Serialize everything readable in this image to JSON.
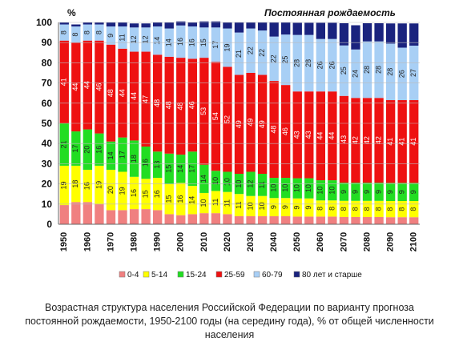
{
  "chart_data": {
    "type": "bar",
    "stacked": true,
    "percent_stacked": true,
    "title": "Постоянная рождаемость",
    "ylabel": "%",
    "ylim": [
      0,
      100
    ],
    "yticks": [
      "0",
      "10",
      "20",
      "30",
      "40",
      "50",
      "60",
      "70",
      "80",
      "90",
      "100"
    ],
    "x_tick_labels": [
      "1950",
      "1960",
      "1970",
      "1980",
      "1990",
      "2000",
      "2010",
      "2020",
      "2030",
      "2040",
      "2050",
      "2060",
      "2070",
      "2080",
      "2090",
      "2100"
    ],
    "categories": [
      1950,
      1955,
      1960,
      1965,
      1970,
      1975,
      1980,
      1985,
      1990,
      1995,
      2000,
      2005,
      2010,
      2015,
      2020,
      2025,
      2030,
      2035,
      2040,
      2045,
      2050,
      2055,
      2060,
      2065,
      2070,
      2075,
      2080,
      2085,
      2090,
      2095,
      2100
    ],
    "legend_position": "bottom",
    "series": [
      {
        "name": "0-4",
        "color": "#f08080",
        "values": [
          9.5,
          11,
          11,
          10,
          7,
          7,
          7.5,
          7.5,
          7,
          5,
          4.5,
          5,
          5.5,
          5.5,
          5,
          4,
          4,
          4,
          4,
          4,
          3.8,
          3.8,
          3.8,
          3.8,
          3.6,
          3.6,
          3.6,
          3.6,
          3.5,
          3.5,
          3.5
        ],
        "labels": [
          "",
          "",
          "",
          "",
          "",
          "",
          "",
          "",
          "",
          "",
          "",
          "",
          "",
          "",
          "",
          "",
          "",
          "",
          "",
          "",
          "",
          "",
          "",
          "",
          "",
          "",
          "",
          "",
          "",
          "",
          ""
        ]
      },
      {
        "name": "5-14",
        "color": "#ffff00",
        "values": [
          19.5,
          18,
          16,
          19,
          20,
          19,
          16,
          15,
          16,
          15,
          16,
          14,
          10,
          11,
          11,
          11,
          10,
          10,
          9,
          9,
          9,
          9,
          8,
          8,
          8,
          8,
          8,
          8,
          8,
          8,
          8
        ],
        "labels": [
          "19",
          "18",
          "16",
          "19",
          "20",
          "19",
          "16",
          "15",
          "16",
          "15",
          "16",
          "14",
          "10",
          "11",
          "11",
          "11",
          "10",
          "10",
          "9",
          "9",
          "9",
          "9",
          "8",
          "8",
          "8",
          "8",
          "8",
          "8",
          "8",
          "8",
          "8"
        ]
      },
      {
        "name": "15-24",
        "color": "#22dd22",
        "values": [
          21,
          17,
          20,
          16,
          14,
          17,
          18,
          16,
          13,
          15,
          14,
          17,
          14,
          10,
          10,
          10,
          12,
          11,
          10,
          10,
          10,
          10,
          10,
          10,
          9,
          9,
          9,
          9,
          9,
          9,
          9
        ],
        "labels": [
          "21",
          "17",
          "20",
          "16",
          "14",
          "17",
          "18",
          "16",
          "13",
          "15",
          "14",
          "17",
          "14",
          "10",
          "10",
          "10",
          "12",
          "11",
          "10",
          "10",
          "10",
          "10",
          "10",
          "10",
          "9",
          "9",
          "9",
          "9",
          "9",
          "9",
          "9"
        ]
      },
      {
        "name": "25-59",
        "color": "#ee1111",
        "values": [
          41,
          44,
          44,
          46,
          48,
          44,
          44,
          47,
          48,
          48,
          48,
          46,
          53,
          54,
          52,
          49,
          49,
          49,
          48,
          46,
          43,
          43,
          44,
          44,
          43,
          42,
          42,
          42,
          41,
          41,
          41
        ],
        "labels": [
          "41",
          "44",
          "44",
          "46",
          "48",
          "44",
          "44",
          "47",
          "48",
          "48",
          "48",
          "46",
          "53",
          "54",
          "52",
          "49",
          "49",
          "49",
          "48",
          "46",
          "43",
          "43",
          "44",
          "44",
          "43",
          "42",
          "42",
          "42",
          "41",
          "41",
          "41"
        ]
      },
      {
        "name": "60-79",
        "color": "#a8cff5",
        "values": [
          8,
          8,
          8,
          8,
          9,
          11,
          12,
          12,
          14,
          14,
          16,
          16,
          15,
          17,
          19,
          21,
          22,
          22,
          22,
          25,
          28,
          28,
          26,
          26,
          25,
          24,
          28,
          28,
          28,
          26,
          27
        ],
        "labels": [
          "8",
          "8",
          "8",
          "8",
          "9",
          "11",
          "12",
          "12",
          "14",
          "14",
          "16",
          "16",
          "15",
          "17",
          "19",
          "21",
          "22",
          "22",
          "22",
          "25",
          "28",
          "28",
          "26",
          "26",
          "25",
          "24",
          "28",
          "28",
          "28",
          "26",
          "27"
        ]
      },
      {
        "name": "80 лет и старше",
        "color": "#1a237e",
        "values": [
          1,
          1,
          1,
          1,
          2,
          2,
          2,
          2,
          2,
          3,
          2,
          2,
          3,
          3,
          3,
          5,
          3,
          4,
          7,
          6,
          6,
          6,
          8,
          8,
          11,
          12,
          9,
          9,
          10,
          12,
          11
        ],
        "labels": [
          "",
          "",
          "",
          "",
          "",
          "",
          "",
          "",
          "",
          "",
          "",
          "",
          "",
          "",
          "",
          "",
          "",
          "",
          "",
          "",
          "",
          "",
          "",
          "",
          "",
          "",
          "",
          "",
          "",
          "",
          ""
        ]
      }
    ]
  },
  "caption": {
    "line1": "Возрастная структура населения Российской Федерации по варианту прогноза",
    "line2": "постоянной рождаемости, 1950-2100 годы (на середину года), % от общей численности",
    "line3": "населения"
  }
}
